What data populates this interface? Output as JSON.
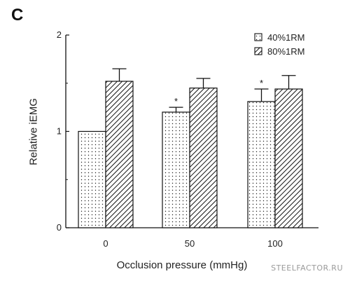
{
  "panel_label": "C",
  "watermark": "STEELFACTOR.RU",
  "chart_data": {
    "type": "bar",
    "xlabel": "Occlusion pressure (mmHg)",
    "ylabel": "Relative iEMG",
    "categories": [
      "0",
      "50",
      "100"
    ],
    "ylim": [
      0,
      2
    ],
    "yticks": [
      "0",
      "1",
      "2"
    ],
    "series": [
      {
        "name": "40%1RM",
        "pattern": "dotted",
        "values": [
          1.0,
          1.2,
          1.31
        ],
        "error": [
          0,
          0.05,
          0.13
        ],
        "significance": [
          "",
          "*",
          "*"
        ]
      },
      {
        "name": "80%1RM",
        "pattern": "hatched",
        "values": [
          1.52,
          1.45,
          1.44
        ],
        "error": [
          0.13,
          0.1,
          0.14
        ],
        "significance": [
          "",
          "",
          ""
        ]
      }
    ],
    "legend_position": "top-right",
    "grid": false
  }
}
